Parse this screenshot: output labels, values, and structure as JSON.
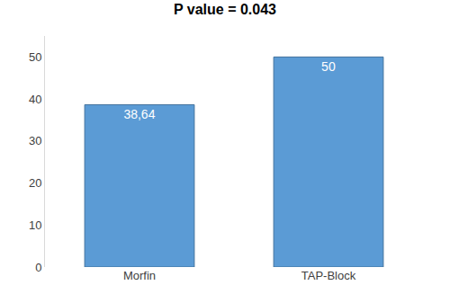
{
  "chart_data": {
    "type": "bar",
    "title": "P value = 0.043",
    "categories": [
      "Morfin",
      "TAP-Block"
    ],
    "values": [
      38.64,
      50
    ],
    "value_labels": [
      "38,64",
      "50"
    ],
    "data_labels": true,
    "color": "#5b9bd5",
    "ylim": [
      0,
      55
    ],
    "yticks": [
      0,
      10,
      20,
      30,
      40,
      50
    ],
    "grid": false
  }
}
